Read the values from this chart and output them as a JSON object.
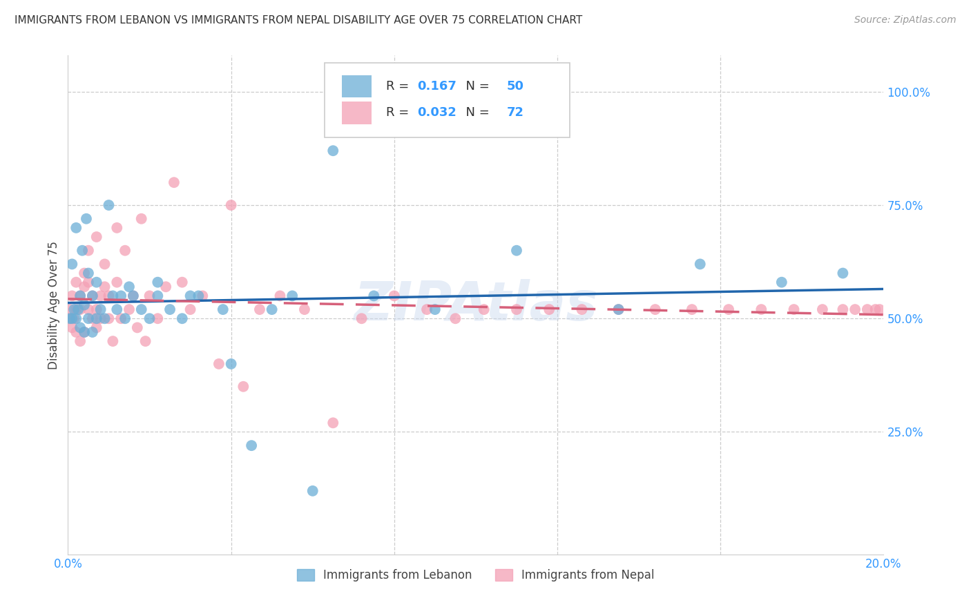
{
  "title": "IMMIGRANTS FROM LEBANON VS IMMIGRANTS FROM NEPAL DISABILITY AGE OVER 75 CORRELATION CHART",
  "source": "Source: ZipAtlas.com",
  "ylabel": "Disability Age Over 75",
  "xmin": 0.0,
  "xmax": 0.2,
  "ymin": 0.0,
  "ymax": 1.0,
  "lebanon_color": "#6baed6",
  "nepal_color": "#f4a0b5",
  "lebanon_line_color": "#2166ac",
  "nepal_line_color": "#d6607a",
  "lebanon_R": 0.167,
  "lebanon_N": 50,
  "nepal_R": 0.032,
  "nepal_N": 72,
  "watermark": "ZIPAtlas",
  "legend_label_lebanon": "Immigrants from Lebanon",
  "legend_label_nepal": "Immigrants from Nepal",
  "lebanon_x": [
    0.0005,
    0.001,
    0.001,
    0.0015,
    0.002,
    0.002,
    0.0025,
    0.003,
    0.003,
    0.0035,
    0.004,
    0.004,
    0.0045,
    0.005,
    0.005,
    0.006,
    0.006,
    0.007,
    0.007,
    0.008,
    0.009,
    0.01,
    0.011,
    0.012,
    0.013,
    0.014,
    0.015,
    0.016,
    0.018,
    0.02,
    0.022,
    0.025,
    0.028,
    0.032,
    0.038,
    0.045,
    0.055,
    0.065,
    0.022,
    0.03,
    0.04,
    0.05,
    0.06,
    0.075,
    0.09,
    0.11,
    0.135,
    0.155,
    0.175,
    0.19
  ],
  "lebanon_y": [
    0.5,
    0.62,
    0.5,
    0.52,
    0.5,
    0.7,
    0.52,
    0.55,
    0.48,
    0.65,
    0.53,
    0.47,
    0.72,
    0.5,
    0.6,
    0.55,
    0.47,
    0.58,
    0.5,
    0.52,
    0.5,
    0.75,
    0.55,
    0.52,
    0.55,
    0.5,
    0.57,
    0.55,
    0.52,
    0.5,
    0.55,
    0.52,
    0.5,
    0.55,
    0.52,
    0.22,
    0.55,
    0.87,
    0.58,
    0.55,
    0.4,
    0.52,
    0.12,
    0.55,
    0.52,
    0.65,
    0.52,
    0.62,
    0.58,
    0.6
  ],
  "nepal_x": [
    0.0003,
    0.0005,
    0.001,
    0.001,
    0.0015,
    0.002,
    0.002,
    0.002,
    0.003,
    0.003,
    0.003,
    0.004,
    0.004,
    0.004,
    0.005,
    0.005,
    0.005,
    0.006,
    0.006,
    0.007,
    0.007,
    0.007,
    0.008,
    0.008,
    0.009,
    0.009,
    0.01,
    0.01,
    0.011,
    0.012,
    0.012,
    0.013,
    0.014,
    0.015,
    0.016,
    0.017,
    0.018,
    0.019,
    0.02,
    0.022,
    0.024,
    0.026,
    0.028,
    0.03,
    0.033,
    0.037,
    0.04,
    0.043,
    0.047,
    0.052,
    0.058,
    0.065,
    0.072,
    0.08,
    0.088,
    0.095,
    0.102,
    0.11,
    0.118,
    0.126,
    0.135,
    0.144,
    0.153,
    0.162,
    0.17,
    0.178,
    0.185,
    0.19,
    0.193,
    0.196,
    0.198,
    0.199
  ],
  "nepal_y": [
    0.5,
    0.52,
    0.48,
    0.55,
    0.5,
    0.52,
    0.47,
    0.58,
    0.52,
    0.55,
    0.45,
    0.57,
    0.6,
    0.47,
    0.52,
    0.58,
    0.65,
    0.55,
    0.5,
    0.52,
    0.48,
    0.68,
    0.55,
    0.5,
    0.57,
    0.62,
    0.55,
    0.5,
    0.45,
    0.58,
    0.7,
    0.5,
    0.65,
    0.52,
    0.55,
    0.48,
    0.72,
    0.45,
    0.55,
    0.5,
    0.57,
    0.8,
    0.58,
    0.52,
    0.55,
    0.4,
    0.75,
    0.35,
    0.52,
    0.55,
    0.52,
    0.27,
    0.5,
    0.55,
    0.52,
    0.5,
    0.52,
    0.52,
    0.52,
    0.52,
    0.52,
    0.52,
    0.52,
    0.52,
    0.52,
    0.52,
    0.52,
    0.52,
    0.52,
    0.52,
    0.52,
    0.52
  ]
}
